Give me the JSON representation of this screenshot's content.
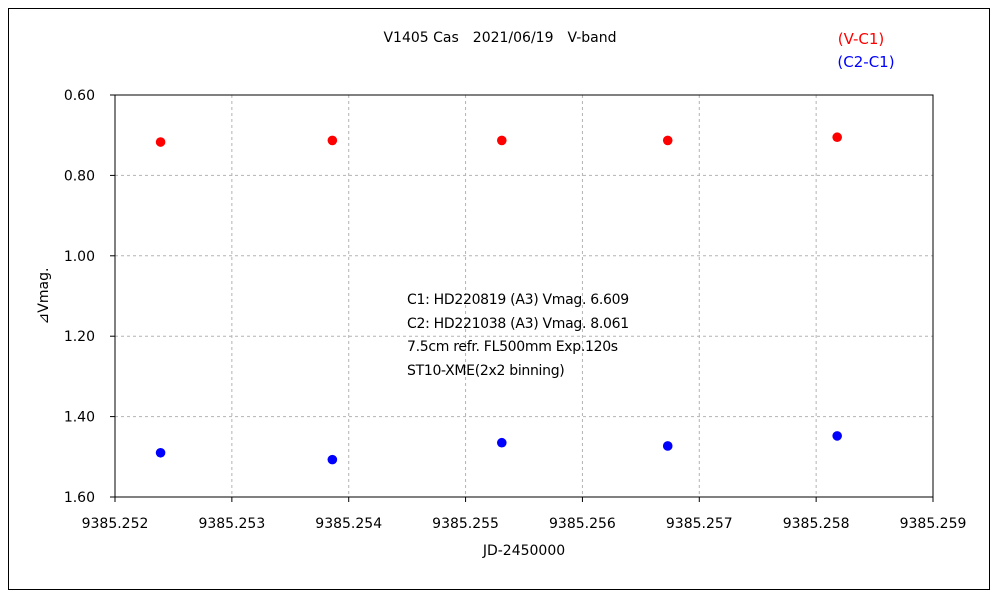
{
  "chart_data": {
    "type": "scatter",
    "title": "V1405 Cas　2021/06/19　V-band",
    "xlabel": "JD-2450000",
    "ylabel": "⊿Vmag.",
    "xlim": [
      9385.252,
      9385.259
    ],
    "ylim": [
      0.6,
      1.6
    ],
    "y_inverted": true,
    "grid": true,
    "x_tick_labels": [
      "9385.252",
      "9385.253",
      "9385.254",
      "9385.255",
      "9385.256",
      "9385.257",
      "9385.258",
      "9385.259"
    ],
    "y_tick_labels": [
      "0.60",
      "0.80",
      "1.00",
      "1.20",
      "1.40",
      "1.60"
    ],
    "legend_position": "top-right",
    "series": [
      {
        "name": "(V-C1)",
        "color": "#ff0000",
        "x": [
          9385.25239,
          9385.25386,
          9385.25531,
          9385.25673,
          9385.25818
        ],
        "y": [
          0.717,
          0.713,
          0.713,
          0.713,
          0.705
        ]
      },
      {
        "name": "(C2-C1)",
        "color": "#0000ff",
        "x": [
          9385.25239,
          9385.25386,
          9385.25531,
          9385.25673,
          9385.25818
        ],
        "y": [
          1.49,
          1.507,
          1.465,
          1.473,
          1.448
        ]
      }
    ],
    "annotations": [
      "C1: HD220819 (A3) Vmag. 6.609",
      "C2: HD221038 (A3) Vmag. 8.061",
      "7.5cm refr. FL500mm  Exp.120s",
      "ST10-XME(2x2 binning)"
    ]
  }
}
